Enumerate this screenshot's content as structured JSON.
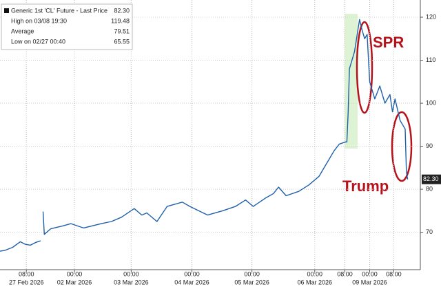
{
  "chart_data": {
    "type": "line",
    "legend": [
      {
        "label": "Generic 1st 'CL' Future - Last Price",
        "value": "82.30"
      },
      {
        "label": "High on 03/08 19:30",
        "value": "119.48"
      },
      {
        "label": "Average",
        "value": "79.51"
      },
      {
        "label": "Low on 02/27 00:40",
        "value": "65.55"
      }
    ],
    "last_price_label": "82.30",
    "annotations": [
      "SPR",
      "Trump"
    ],
    "x": [
      0,
      2,
      5,
      8,
      10,
      12,
      14,
      16,
      16.5,
      17,
      17.5,
      20,
      25,
      28,
      33,
      40,
      44,
      48,
      53,
      56,
      58,
      62,
      66,
      72,
      75,
      82,
      88,
      93,
      97,
      100,
      105,
      108,
      110,
      113,
      118,
      122,
      126,
      129,
      132,
      134,
      136.5,
      137,
      137.5,
      138,
      140,
      142,
      143,
      144,
      145,
      146,
      148,
      150,
      152,
      154,
      155,
      156,
      158,
      159,
      160,
      160.5,
      161
    ],
    "series": [
      {
        "name": "Generic 1st 'CL' Future - Last Price",
        "color": "#1f5fa8",
        "values": [
          65.6,
          65.8,
          66.5,
          67.8,
          67.2,
          67.0,
          67.6,
          68.0,
          null,
          74.8,
          69.5,
          70.8,
          71.5,
          72.0,
          71.0,
          72.0,
          72.5,
          73.5,
          75.5,
          74.0,
          74.5,
          72.5,
          76.0,
          77.0,
          76.0,
          74.0,
          75.0,
          76.0,
          77.5,
          76.0,
          78.0,
          79.0,
          80.5,
          78.5,
          79.5,
          81.0,
          83.0,
          86.0,
          89.0,
          90.5,
          91.0,
          91.0,
          98.0,
          108.0,
          112.0,
          119.48,
          117.0,
          115.0,
          116.0,
          105.0,
          101.0,
          104.0,
          100.0,
          102.0,
          98.0,
          101.0,
          96.0,
          95.0,
          94.0,
          84.0,
          82.3
        ]
      }
    ],
    "xlim": [
      0,
      166
    ],
    "xticks": [
      {
        "value": 10.4,
        "label": "08:00",
        "date": "27 Feb 2026"
      },
      {
        "value": 29.4,
        "label": "00:00",
        "date": "02 Mar 2026"
      },
      {
        "value": 51.8,
        "label": "00:00",
        "date": "03 Mar 2026"
      },
      {
        "value": 75.8,
        "label": "00:00",
        "date": "04 Mar 2026"
      },
      {
        "value": 99.5,
        "label": "00:00",
        "date": "05 Mar 2026"
      },
      {
        "value": 124.3,
        "label": "00:00",
        "date": "06 Mar 2026"
      },
      {
        "value": 136.2,
        "label": "08:00"
      },
      {
        "value": 146,
        "label": "00:00",
        "date": "09 Mar 2026"
      },
      {
        "value": 155.5,
        "label": "08:00"
      }
    ],
    "ylim": [
      61.3,
      124
    ],
    "yticks": [
      70,
      80,
      90,
      100,
      110,
      120
    ],
    "grid": true
  }
}
